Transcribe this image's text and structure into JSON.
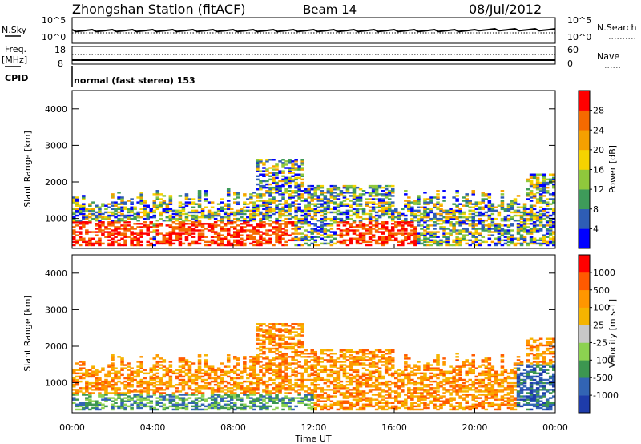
{
  "header": {
    "title": "Zhongshan Station (fitACF)",
    "beam": "Beam 14",
    "date": "08/Jul/2012"
  },
  "top_panels": {
    "nsky": {
      "label": "N.Sky",
      "left_ticks": [
        "10^5",
        "10^0"
      ],
      "right_label": "N.Search",
      "right_ticks": [
        "10^5",
        "10^0"
      ]
    },
    "freq": {
      "label_line1": "Freq.",
      "label_line2": "[MHz]",
      "left_ticks": [
        "18",
        "8"
      ],
      "right_label": "Nave",
      "right_ticks": [
        "60",
        "0"
      ]
    },
    "cpid": {
      "label": "CPID",
      "text": "normal (fast stereo) 153"
    }
  },
  "colors": {
    "power_scale": [
      "#0000ff",
      "#2e5db5",
      "#3e9b5a",
      "#8fc83c",
      "#f5d300",
      "#f5a000",
      "#f56a00",
      "#ff0000"
    ],
    "velocity_scale": [
      "#ff0000",
      "#ff5a00",
      "#ff9600",
      "#f5b400",
      "#c8c8c8",
      "#8cd250",
      "#3c9650",
      "#3264b4",
      "#1e3caa"
    ]
  },
  "chart_data": [
    {
      "type": "heatmap",
      "name": "power",
      "ylabel": "Slant Range [km]",
      "yticks": [
        1000,
        2000,
        3000,
        4000
      ],
      "ylim": [
        180,
        4500
      ],
      "xlim_hours": [
        0,
        24
      ],
      "colorbar": {
        "label": "Power [dB]",
        "tick_labels": [
          "4",
          "8",
          "12",
          "16",
          "20",
          "24",
          "28"
        ],
        "range": [
          0,
          32
        ]
      }
    },
    {
      "type": "heatmap",
      "name": "velocity",
      "ylabel": "Slant Range [km]",
      "yticks": [
        1000,
        2000,
        3000,
        4000
      ],
      "ylim": [
        180,
        4500
      ],
      "xlim_hours": [
        0,
        24
      ],
      "colorbar": {
        "label": "Velocity [m s-1]",
        "tick_labels": [
          "1000",
          "500",
          "100",
          "25",
          "-25",
          "-100",
          "-500",
          "-1000"
        ]
      },
      "xlabel": "Time UT",
      "xtick_labels": [
        "00:00",
        "04:00",
        "08:00",
        "12:00",
        "16:00",
        "20:00",
        "00:00"
      ]
    }
  ]
}
